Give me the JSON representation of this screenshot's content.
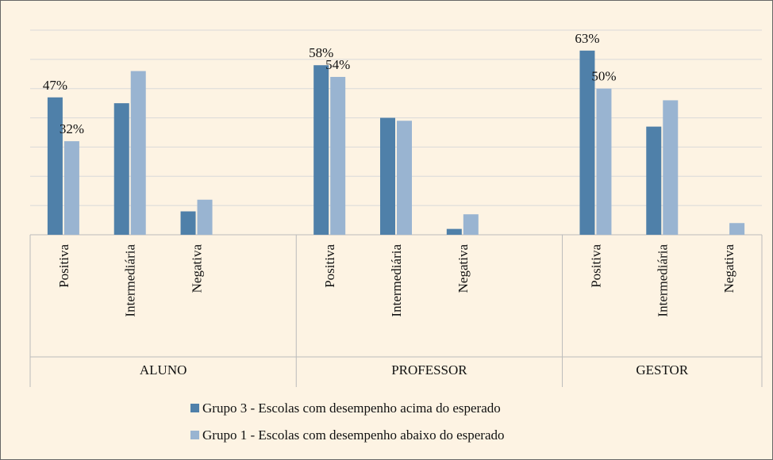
{
  "chart_data": {
    "type": "bar",
    "groups": [
      "ALUNO",
      "PROFESSOR",
      "GESTOR"
    ],
    "categories": [
      "Positiva",
      "Intermediária",
      "Negativa",
      "Positiva",
      "Intermediária",
      "Negativa",
      "Positiva",
      "Intermediária",
      "Negativa"
    ],
    "series": [
      {
        "name": "Grupo 3 - Escolas com desempenho acima do esperado",
        "color": "#4f80a9",
        "values": [
          47,
          45,
          8,
          58,
          40,
          2,
          63,
          37,
          0
        ],
        "value_labels": [
          "47%",
          null,
          null,
          "58%",
          null,
          null,
          "63%",
          null,
          null
        ]
      },
      {
        "name": "Grupo 1 - Escolas com desempenho abaixo do esperado",
        "color": "#99b4d1",
        "values": [
          32,
          56,
          12,
          54,
          39,
          7,
          50,
          46,
          4
        ],
        "value_labels": [
          "32%",
          null,
          null,
          "54%",
          null,
          null,
          "50%",
          null,
          null
        ]
      }
    ],
    "ylim": [
      0,
      70
    ],
    "yticks": [
      0,
      10,
      20,
      30,
      40,
      50,
      60,
      70
    ],
    "grid": true,
    "legend": "bottom"
  }
}
